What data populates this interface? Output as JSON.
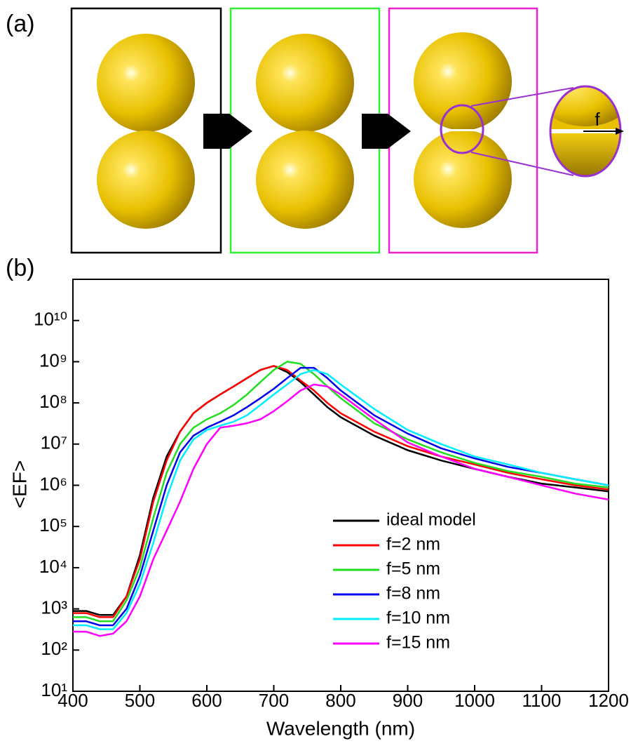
{
  "figure": {
    "panel_a_label": "(a)",
    "inset_label": "f",
    "panel_b_label": "(b)"
  },
  "chart_data": {
    "type": "line",
    "x_label": "Wavelength (nm)",
    "y_label": "<EF>",
    "yscale": "log",
    "legend": "lower right",
    "xlim": [
      400,
      1200
    ],
    "xticks": [
      400,
      500,
      600,
      700,
      800,
      900,
      1000,
      1100,
      1200
    ],
    "ylim": [
      10,
      100000000000
    ],
    "yticks": [
      {
        "value": 10,
        "label": "10¹"
      },
      {
        "value": 100,
        "label": "10²"
      },
      {
        "value": 1000,
        "label": "10³"
      },
      {
        "value": 10000,
        "label": "10⁴"
      },
      {
        "value": 100000,
        "label": "10⁵"
      },
      {
        "value": 1000000,
        "label": "10⁶"
      },
      {
        "value": 10000000,
        "label": "10⁷"
      },
      {
        "value": 100000000,
        "label": "10⁸"
      },
      {
        "value": 1000000000,
        "label": "10⁹"
      },
      {
        "value": 10000000000,
        "label": "10¹⁰"
      }
    ],
    "x": [
      400,
      420,
      440,
      460,
      480,
      500,
      520,
      540,
      560,
      580,
      600,
      620,
      640,
      660,
      680,
      700,
      720,
      740,
      760,
      780,
      800,
      850,
      900,
      950,
      1000,
      1050,
      1100,
      1150,
      1200
    ],
    "series": [
      {
        "name": "ideal model",
        "color": "#000000",
        "values": [
          890.0,
          890.0,
          710.0,
          710.0,
          2000.0,
          20000.0,
          500000.0,
          5000000.0,
          20000000.0,
          56000000.0,
          100000000.0,
          160000000.0,
          250000000.0,
          400000000.0,
          630000000.0,
          790000000.0,
          560000000.0,
          320000000.0,
          160000000.0,
          79000000.0,
          45000000.0,
          16000000.0,
          7100000.0,
          4000000.0,
          2500000.0,
          1600000.0,
          1100000.0,
          890000.0,
          710000.0
        ]
      },
      {
        "name": "f=2 nm",
        "color": "#ff0000",
        "values": [
          790.0,
          790.0,
          630.0,
          630.0,
          2000.0,
          16000.0,
          400000.0,
          4000000.0,
          20000000.0,
          56000000.0,
          100000000.0,
          160000000.0,
          250000000.0,
          400000000.0,
          630000000.0,
          790000000.0,
          630000000.0,
          350000000.0,
          200000000.0,
          100000000.0,
          56000000.0,
          20000000.0,
          8900000.0,
          5000000.0,
          3200000.0,
          2000000.0,
          1400000.0,
          1000000.0,
          790000.0
        ]
      },
      {
        "name": "f=5 nm",
        "color": "#22dd22",
        "values": [
          630.0,
          630.0,
          500.0,
          500.0,
          1600.0,
          10000.0,
          160000.0,
          2000000.0,
          10000000.0,
          25000000.0,
          40000000.0,
          56000000.0,
          89000000.0,
          160000000.0,
          320000000.0,
          630000000.0,
          1000000000.0,
          890000000.0,
          500000000.0,
          250000000.0,
          130000000.0,
          32000000.0,
          13000000.0,
          6300000.0,
          3500000.0,
          2200000.0,
          1600000.0,
          1100000.0,
          890000.0
        ]
      },
      {
        "name": "f=8 nm",
        "color": "#0000ee",
        "values": [
          500.0,
          500.0,
          400.0,
          400.0,
          1000.0,
          6300.0,
          79000.0,
          1000000.0,
          6300000.0,
          16000000.0,
          25000000.0,
          35000000.0,
          50000000.0,
          79000000.0,
          130000000.0,
          220000000.0,
          400000000.0,
          710000000.0,
          710000000.0,
          400000000.0,
          200000000.0,
          50000000.0,
          18000000.0,
          7900000.0,
          4500000.0,
          2800000.0,
          2000000.0,
          1400000.0,
          1000000.0
        ]
      },
      {
        "name": "f=10 nm",
        "color": "#00eeff",
        "values": [
          400.0,
          400.0,
          320.0,
          320.0,
          790.0,
          4000.0,
          40000.0,
          500000.0,
          4000000.0,
          13000000.0,
          22000000.0,
          28000000.0,
          35000000.0,
          50000000.0,
          89000000.0,
          160000000.0,
          280000000.0,
          500000000.0,
          630000000.0,
          500000000.0,
          280000000.0,
          71000000.0,
          22000000.0,
          10000000.0,
          5000000.0,
          3200000.0,
          2000000.0,
          1400000.0,
          1000000.0
        ]
      },
      {
        "name": "f=15 nm",
        "color": "#ff00ff",
        "values": [
          280.0,
          280.0,
          220.0,
          250.0,
          500.0,
          2000.0,
          16000.0,
          79000.0,
          400000.0,
          2500000.0,
          10000000.0,
          25000000.0,
          28000000.0,
          32000000.0,
          40000000.0,
          63000000.0,
          110000000.0,
          200000000.0,
          280000000.0,
          250000000.0,
          160000000.0,
          40000000.0,
          11000000.0,
          5000000.0,
          2500000.0,
          1600000.0,
          1000000.0,
          630000.0,
          450000.0
        ]
      }
    ]
  }
}
